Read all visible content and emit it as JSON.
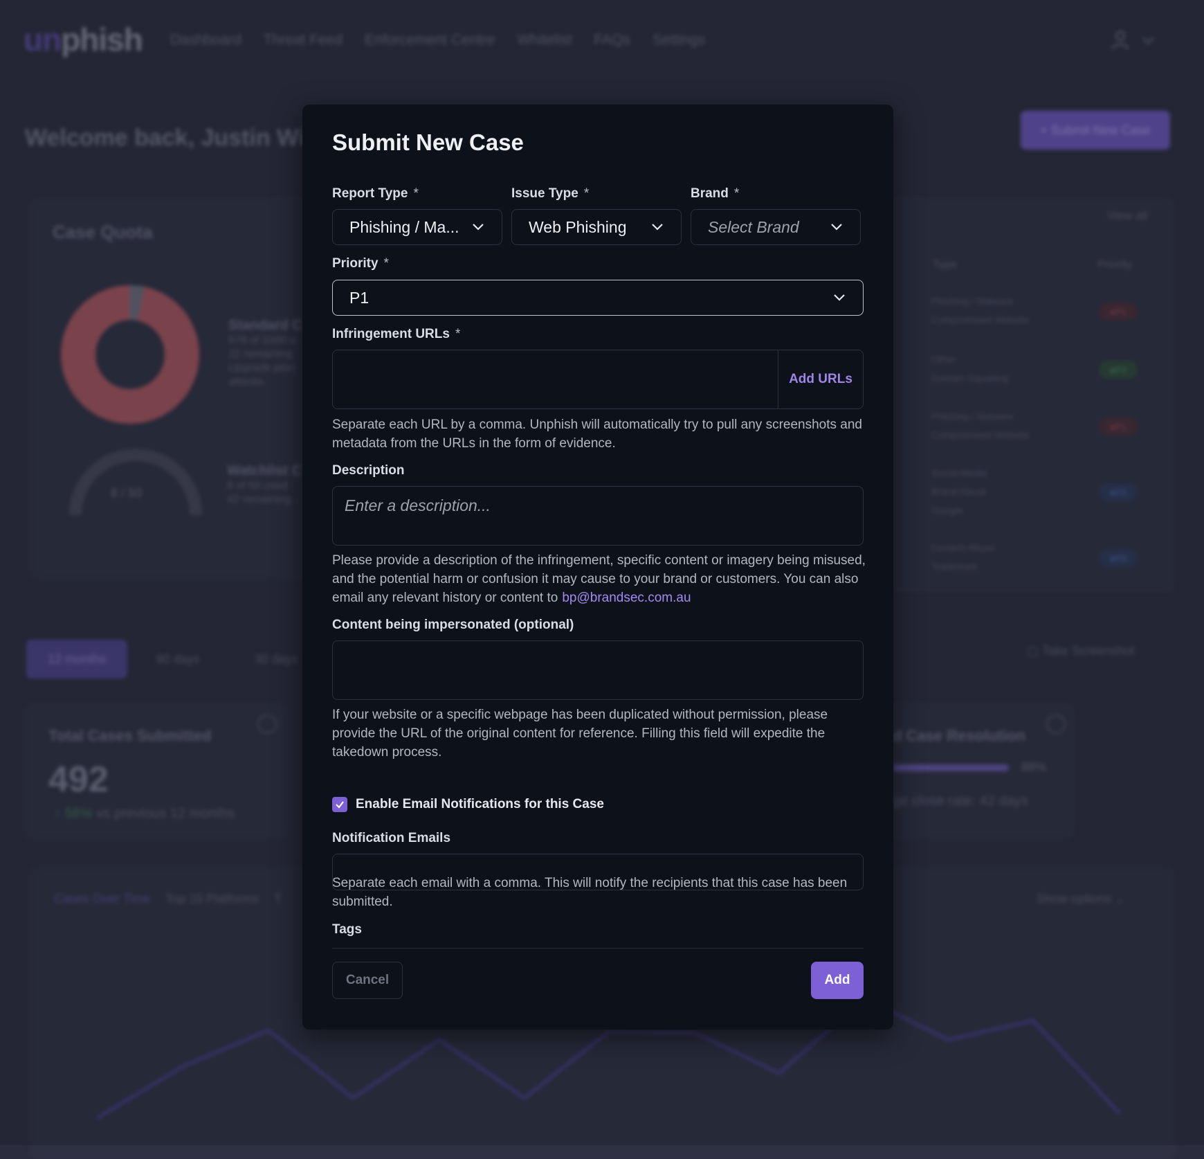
{
  "app": {
    "logo_prefix": "un",
    "logo_suffix": "phish",
    "nav": [
      "Dashboard",
      "Threat Feed",
      "Enforcement Centre",
      "Whitelist",
      "FAQs",
      "Settings"
    ]
  },
  "dashboard": {
    "welcome": "Welcome back, Justin Wi",
    "submit_button": "+ Submit New Case",
    "quota_title": "Case Quota",
    "standard_title": "Standard C",
    "standard_lines": [
      "978 of 1000 u",
      "22 remaining",
      "Upgrade plan",
      "attacks."
    ],
    "gauge_value": "8 / 50",
    "watchlist_title": "Watchlist C",
    "watchlist_lines": [
      "8 of 50 used",
      "42 remaining"
    ],
    "view_all": "View all",
    "table_headers": [
      "Type",
      "Priority"
    ],
    "table_rows": [
      {
        "type": [
          "Phishing / Malware",
          "Compromised Website"
        ],
        "priority": "P1",
        "color": "red"
      },
      {
        "type": [
          "Other",
          "Domain Squatting"
        ],
        "priority": "P4",
        "color": "green"
      },
      {
        "type": [
          "Phishing / Malware",
          "Compromised Website"
        ],
        "priority": "P1",
        "color": "red"
      },
      {
        "type": [
          "Social Media",
          "Brand Abuse",
          "Google"
        ],
        "priority": "P3",
        "color": "blue"
      },
      {
        "type": [
          "Content Abuse",
          "Trademark"
        ],
        "priority": "P3",
        "color": "blue"
      }
    ],
    "ranges": [
      "12 months",
      "90 days",
      "30 days"
    ],
    "take_screenshot": "Take Screenshot",
    "total_title": "Total Cases Submitted",
    "total_value": "492",
    "total_change": "56%",
    "total_change_suffix": "vs previous 12 months",
    "resolution_title": "d Case Resolution",
    "resolution_pct": "88%",
    "resolution_avg": "ge close rate: 42 days",
    "chart_tabs": [
      "Cases Over Time",
      "Top 10 Platforms",
      "T"
    ],
    "show_options": "Show options"
  },
  "modal": {
    "title": "Submit New Case",
    "report_type": {
      "label": "Report Type",
      "value": "Phishing / Ma..."
    },
    "issue_type": {
      "label": "Issue Type",
      "value": "Web Phishing"
    },
    "brand": {
      "label": "Brand",
      "placeholder": "Select Brand"
    },
    "priority": {
      "label": "Priority",
      "value": "P1"
    },
    "urls": {
      "label": "Infringement URLs",
      "add_button": "Add URLs",
      "help": "Separate each URL by a comma. Unphish will automatically try to pull any screenshots and metadata from the URLs in the form of evidence."
    },
    "description": {
      "label": "Description",
      "placeholder": "Enter a description...",
      "help": "Please provide a description of the infringement, specific content or imagery being misused, and the potential harm or confusion it may cause to your brand or customers. You can also email any relevant history or content to",
      "email": "bp@brandsec.com.au"
    },
    "content": {
      "label": "Content being impersonated (optional)",
      "help": "If your website or a specific webpage has been duplicated without permission, please provide the URL of the original content for reference. Filling this field will expedite the takedown process."
    },
    "notifications": {
      "checkbox_label": "Enable Email Notifications for this Case",
      "checked": true,
      "emails_label": "Notification Emails",
      "help": "Separate each email with a comma. This will notify the recipients that this case has been submitted."
    },
    "tags_label": "Tags",
    "required_mark": "*",
    "cancel": "Cancel",
    "add": "Add"
  },
  "colors": {
    "accent": "#7d5fd6",
    "link": "#a28cf0",
    "modal_bg": "#0d1119",
    "page_bg": "#2b2d3e"
  }
}
